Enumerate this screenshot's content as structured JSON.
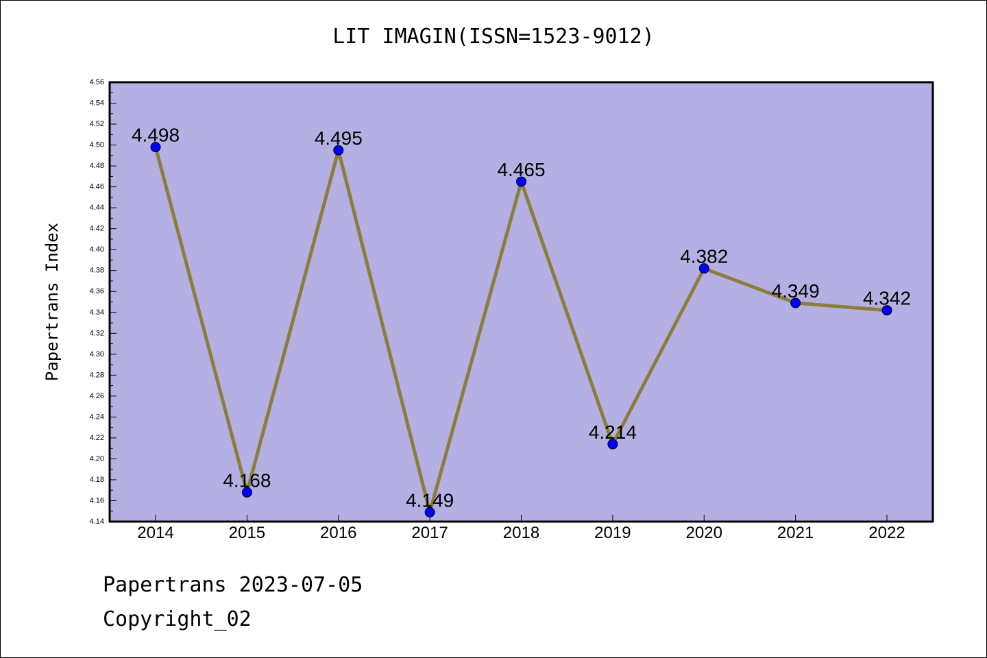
{
  "chart_data": {
    "type": "line",
    "title": "LIT IMAGIN(ISSN=1523-9012)",
    "ylabel": "Papertrans Index",
    "xlabel": "",
    "categories": [
      "2014",
      "2015",
      "2016",
      "2017",
      "2018",
      "2019",
      "2020",
      "2021",
      "2022"
    ],
    "series": [
      {
        "values": [
          4.498,
          4.168,
          4.495,
          4.149,
          4.465,
          4.214,
          4.382,
          4.349,
          4.342
        ],
        "data_labels": [
          "4.498",
          "4.168",
          "4.495",
          "4.149",
          "4.465",
          "4.214",
          "4.382",
          "4.349",
          "4.342"
        ]
      }
    ],
    "ylim": [
      4.14,
      4.56
    ],
    "yticks": [
      "4.14",
      "4.16",
      "4.18",
      "4.20",
      "4.22",
      "4.24",
      "4.26",
      "4.28",
      "4.30",
      "4.32",
      "4.34",
      "4.36",
      "4.38",
      "4.40",
      "4.42",
      "4.44",
      "4.46",
      "4.48",
      "4.50",
      "4.52",
      "4.54",
      "4.56"
    ],
    "grid": false,
    "colors": {
      "plot_background": "#b5b0e3",
      "line": "#8b7d3a",
      "marker": "#0000ff"
    }
  },
  "footer": {
    "line1": "Papertrans 2023-07-05",
    "line2": "Copyright_02"
  }
}
